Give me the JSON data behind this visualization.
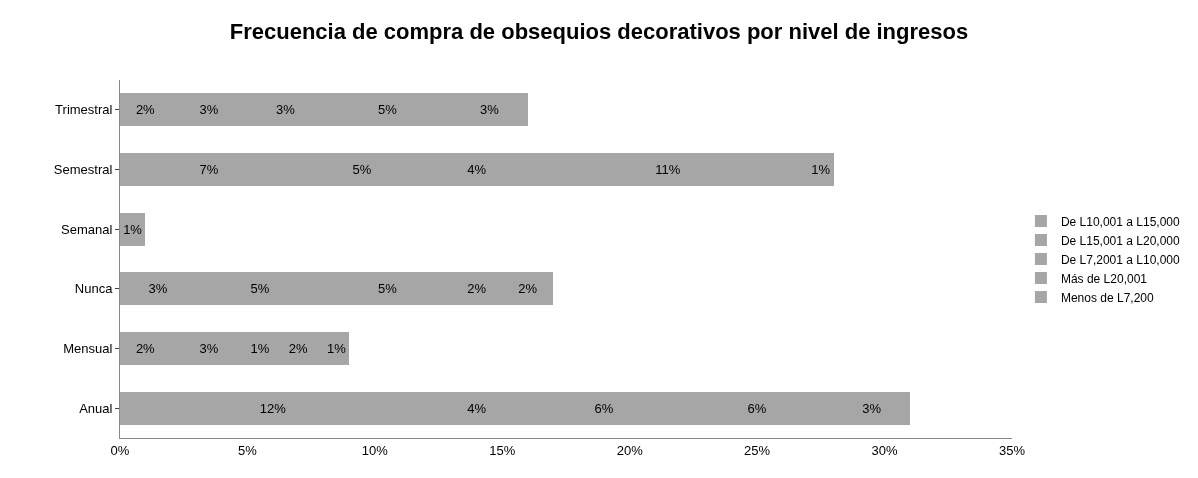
{
  "chart_data": {
    "type": "bar",
    "orientation": "horizontal",
    "stacked": true,
    "title": "Frecuencia de compra de obsequios decorativos por nivel de ingresos",
    "categories": [
      "Trimestral",
      "Semestral",
      "Semanal",
      "Nunca",
      "Mensual",
      "Anual"
    ],
    "series": [
      {
        "name": "De L10,001 a L15,000",
        "color": "#a6a6a6",
        "values": [
          2,
          7,
          1,
          3,
          2,
          12
        ],
        "value_labels": [
          "2%",
          "7%",
          "1%",
          "3%",
          "2%",
          "12%"
        ]
      },
      {
        "name": "De L15,001 a L20,000",
        "color": "#a6a6a6",
        "values": [
          3,
          5,
          null,
          5,
          3,
          4
        ],
        "value_labels": [
          "3%",
          "5%",
          null,
          "5%",
          "3%",
          "4%"
        ]
      },
      {
        "name": "De L7,2001 a L10,000",
        "color": "#a6a6a6",
        "values": [
          3,
          4,
          null,
          5,
          1,
          6
        ],
        "value_labels": [
          "3%",
          "4%",
          null,
          "5%",
          "1%",
          "6%"
        ]
      },
      {
        "name": "Más de L20,001",
        "color": "#a6a6a6",
        "values": [
          5,
          11,
          null,
          2,
          2,
          6
        ],
        "value_labels": [
          "5%",
          "11%",
          null,
          "2%",
          "2%",
          "6%"
        ]
      },
      {
        "name": "Menos de L7,200",
        "color": "#a6a6a6",
        "values": [
          3,
          1,
          null,
          2,
          1,
          3
        ],
        "value_labels": [
          "3%",
          "1%",
          null,
          "2%",
          "1%",
          "3%"
        ]
      }
    ],
    "xlim": [
      0,
      35
    ],
    "xticks": [
      {
        "value": 0,
        "label": "0%"
      },
      {
        "value": 5,
        "label": "5%"
      },
      {
        "value": 10,
        "label": "10%"
      },
      {
        "value": 15,
        "label": "15%"
      },
      {
        "value": 20,
        "label": "20%"
      },
      {
        "value": 25,
        "label": "25%"
      },
      {
        "value": 30,
        "label": "30%"
      },
      {
        "value": 35,
        "label": "35%"
      }
    ],
    "legend": "right"
  }
}
